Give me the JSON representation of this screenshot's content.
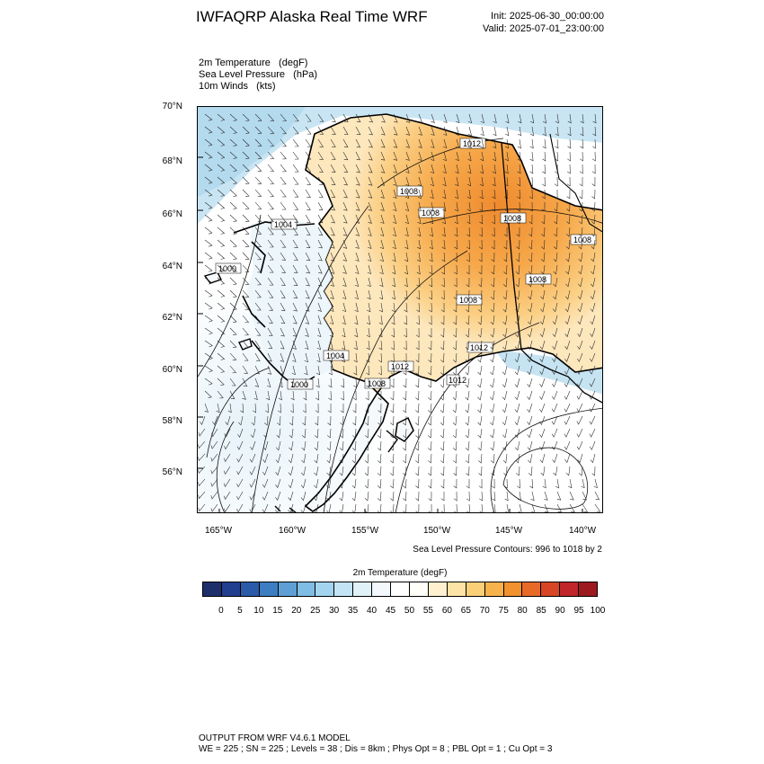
{
  "header": {
    "title": "IWFAQRP Alaska Real Time WRF",
    "init": "Init: 2025-06-30_00:00:00",
    "valid": "Valid: 2025-07-01_23:00:00"
  },
  "fields": [
    "2m Temperature   (degF)",
    "Sea Level Pressure   (hPa)",
    "10m Winds   (kts)"
  ],
  "axes": {
    "lat_labels": [
      "70°N",
      "68°N",
      "66°N",
      "64°N",
      "62°N",
      "60°N",
      "58°N",
      "56°N"
    ],
    "lon_labels": [
      "165°W",
      "160°W",
      "155°W",
      "150°W",
      "145°W",
      "140°W"
    ]
  },
  "isobar_labels": [
    "1012",
    "1008",
    "1008",
    "1008",
    "1008",
    "1004",
    "1008",
    "1000",
    "1008",
    "1012",
    "1004",
    "1012",
    "1000",
    "1008",
    "1012"
  ],
  "contour_note": "Sea Level Pressure Contours: 996 to 1018 by 2",
  "colorbar": {
    "title": "2m Temperature  (degF)",
    "labels": [
      "0",
      "5",
      "10",
      "15",
      "20",
      "25",
      "30",
      "35",
      "40",
      "45",
      "50",
      "55",
      "60",
      "65",
      "70",
      "75",
      "80",
      "85",
      "90",
      "95",
      "100"
    ],
    "colors": [
      "#1d2f6b",
      "#213f8f",
      "#2a5ba8",
      "#3d7ec2",
      "#5ea0d5",
      "#7fbde4",
      "#a3d4ef",
      "#c3e4f4",
      "#e0f1f8",
      "#f2f8fb",
      "#ffffff",
      "#fffef8",
      "#fff0cf",
      "#fde3a6",
      "#fbcf78",
      "#f8b24c",
      "#f2912f",
      "#e86a28",
      "#d74524",
      "#c0262a",
      "#9c1a1e"
    ]
  },
  "footer": {
    "line1": "OUTPUT FROM WRF V4.6.1 MODEL",
    "line2": "WE = 225 ; SN = 225 ; Levels = 38 ; Dis = 8km ; Phys Opt = 8 ; PBL Opt = 1 ; Cu Opt = 3"
  }
}
